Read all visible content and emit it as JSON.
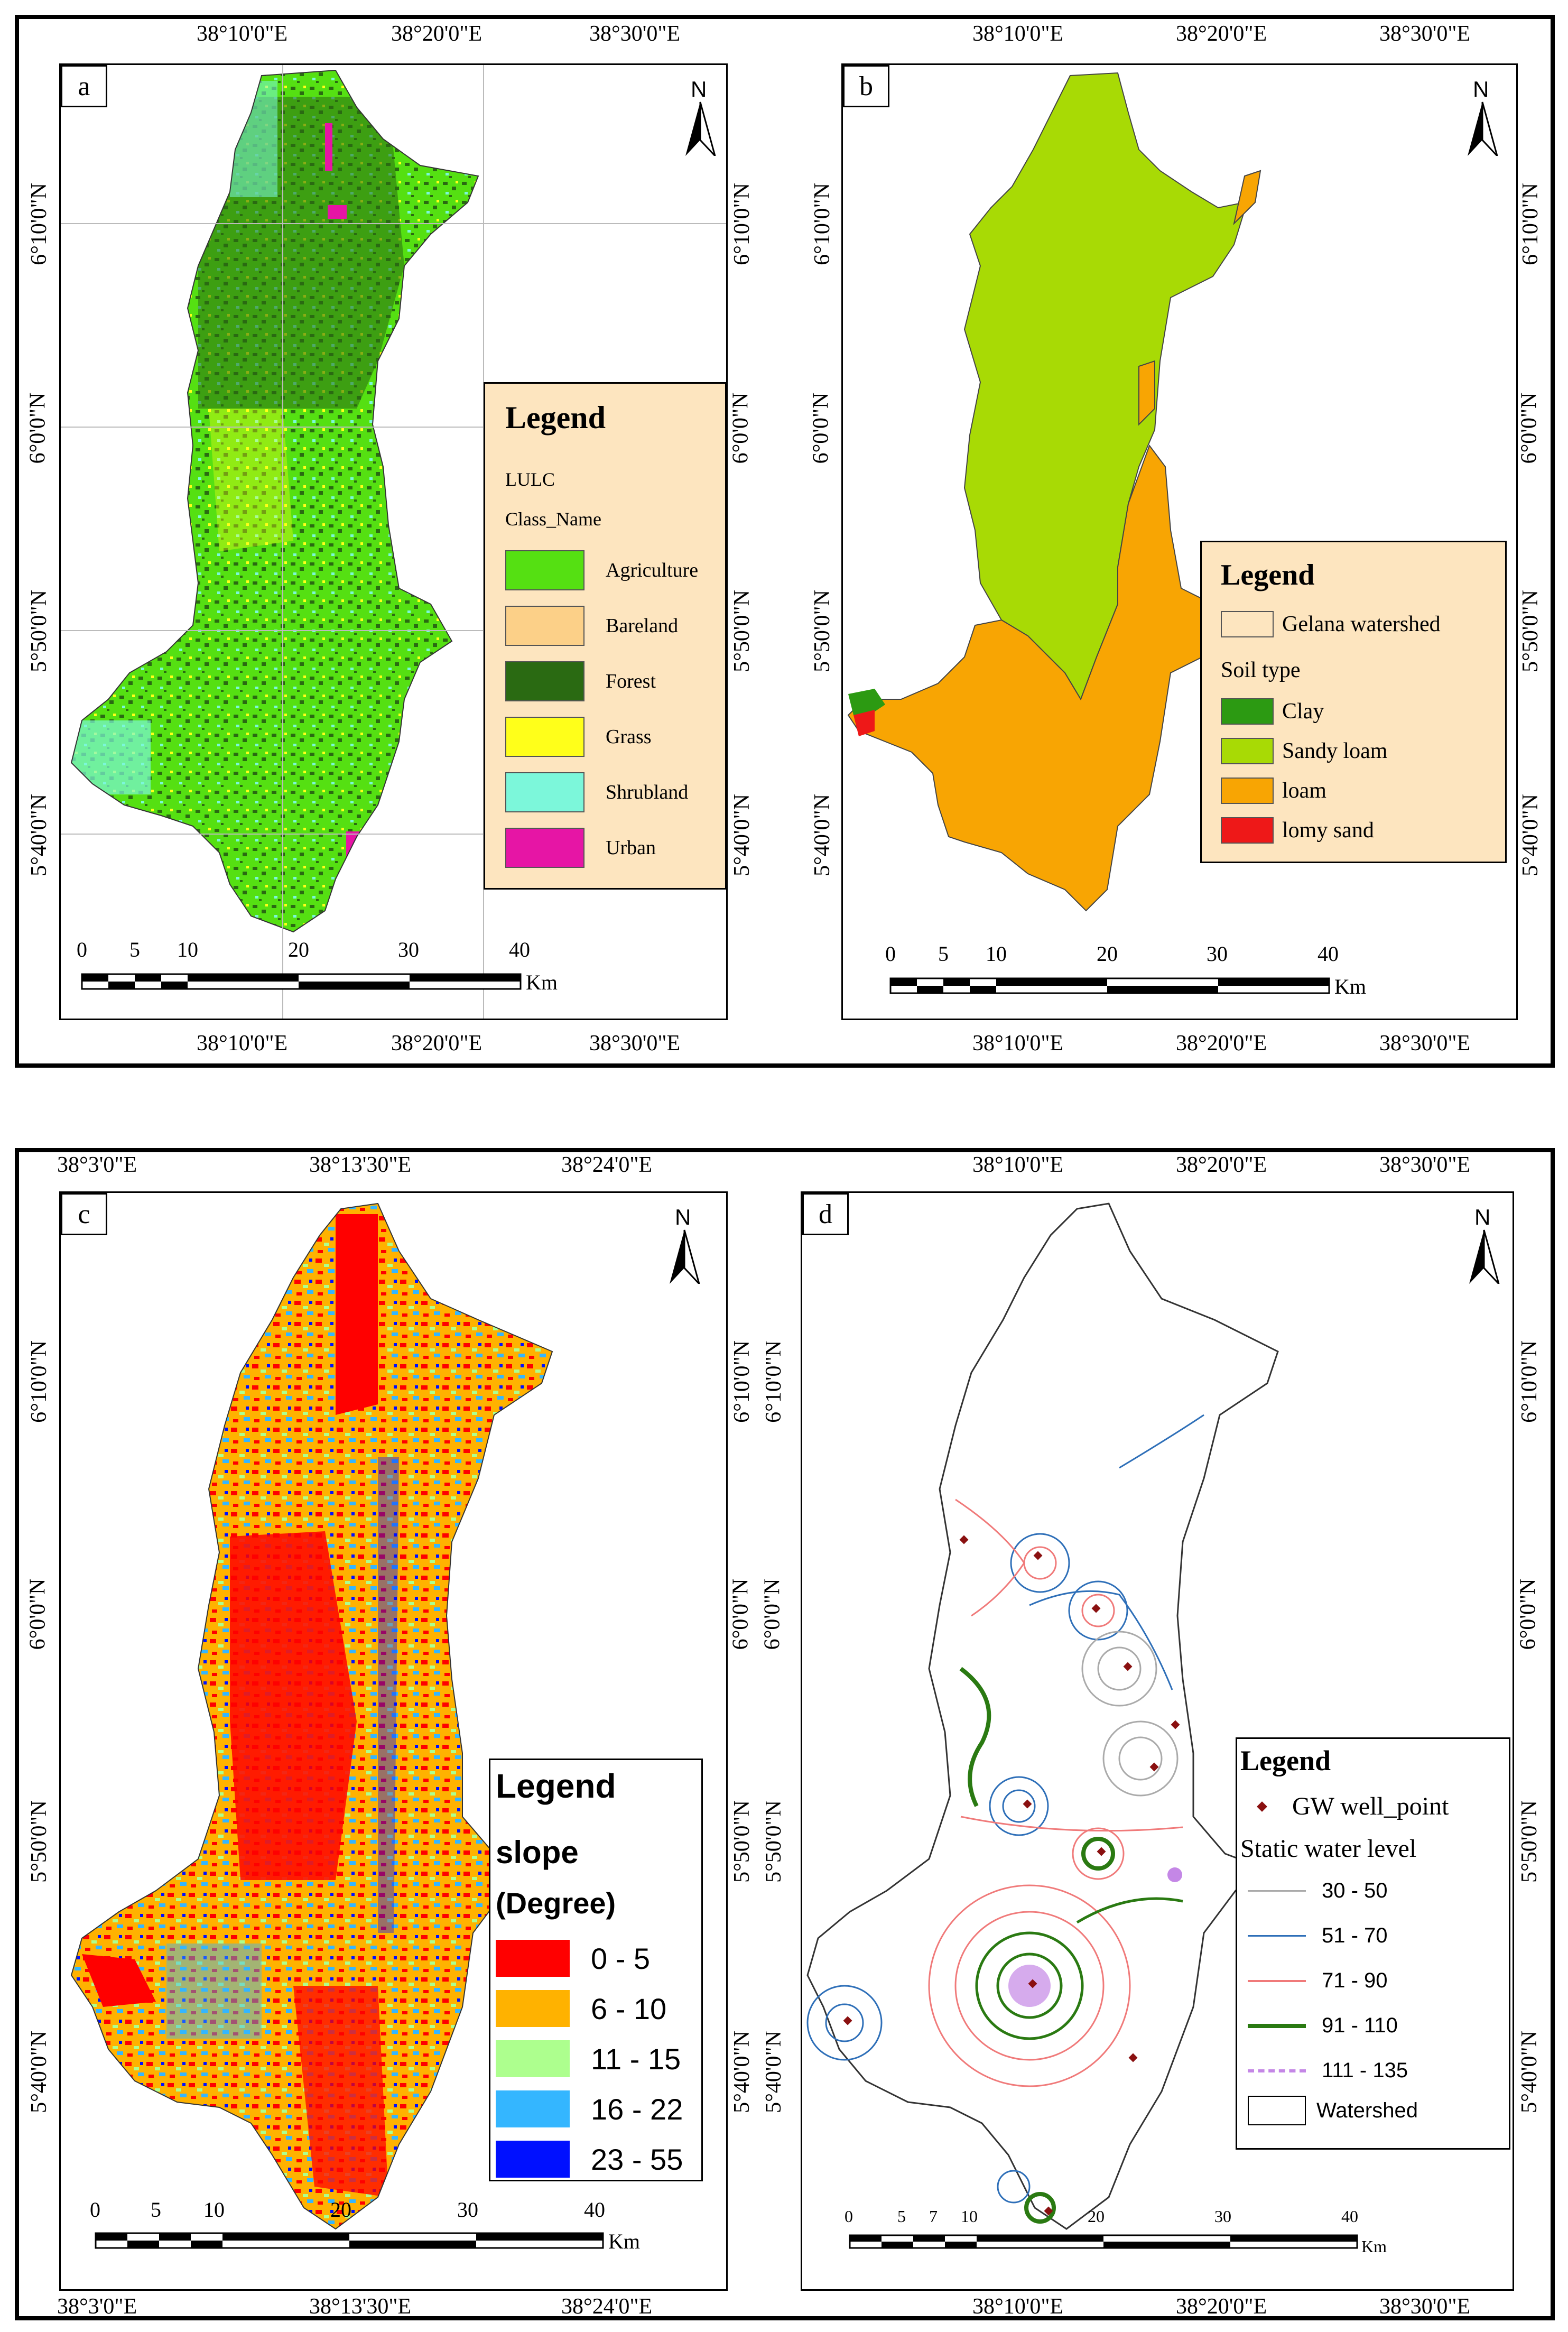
{
  "panels": {
    "a": {
      "label": "a",
      "top_lons": [
        "38°10'0\"E",
        "38°20'0\"E",
        "38°30'0\"E"
      ],
      "bottom_lons": [
        "38°10'0\"E",
        "38°20'0\"E",
        "38°30'0\"E"
      ],
      "lats": [
        "6°10'0\"N",
        "6°0'0\"N",
        "5°50'0\"N",
        "5°40'0\"N"
      ],
      "north": "N",
      "legend": {
        "title": "Legend",
        "sub1": "LULC",
        "sub2": "Class_Name",
        "items": [
          {
            "label": "Agriculture",
            "color": "#55e012"
          },
          {
            "label": "Bareland",
            "color": "#fcd088"
          },
          {
            "label": "Forest",
            "color": "#2a6a12"
          },
          {
            "label": "Grass",
            "color": "#ffff1a"
          },
          {
            "label": "Shrubland",
            "color": "#7cf7da"
          },
          {
            "label": "Urban",
            "color": "#e615a5"
          }
        ]
      },
      "scalebar": {
        "ticks": [
          "0",
          "5",
          "10",
          "20",
          "30",
          "40"
        ],
        "unit": "Km"
      }
    },
    "b": {
      "label": "b",
      "top_lons": [
        "38°10'0\"E",
        "38°20'0\"E",
        "38°30'0\"E"
      ],
      "bottom_lons": [
        "38°10'0\"E",
        "38°20'0\"E",
        "38°30'0\"E"
      ],
      "lats": [
        "6°10'0\"N",
        "6°0'0\"N",
        "5°50'0\"N",
        "5°40'0\"N"
      ],
      "north": "N",
      "legend": {
        "title": "Legend",
        "watershed": "Gelana watershed",
        "subtitle": "Soil type",
        "items": [
          {
            "label": "Clay",
            "color": "#2c9a12"
          },
          {
            "label": "Sandy loam",
            "color": "#a8da05"
          },
          {
            "label": "loam",
            "color": "#f8a503"
          },
          {
            "label": "lomy sand",
            "color": "#ee1818"
          }
        ]
      },
      "scalebar": {
        "ticks": [
          "0",
          "5",
          "10",
          "20",
          "30",
          "40"
        ],
        "unit": "Km"
      }
    },
    "c": {
      "label": "c",
      "top_lons": [
        "38°3'0\"E",
        "38°13'30\"E",
        "38°24'0\"E"
      ],
      "bottom_lons": [
        "38°3'0\"E",
        "38°13'30\"E",
        "38°24'0\"E"
      ],
      "lats": [
        "6°10'0\"N",
        "6°0'0\"N",
        "5°50'0\"N",
        "5°40'0\"N"
      ],
      "north": "N",
      "legend": {
        "title": "Legend",
        "sub1": "slope",
        "sub2": "(Degree)",
        "items": [
          {
            "label": "0 - 5",
            "color": "#ff0000"
          },
          {
            "label": "6 - 10",
            "color": "#ffb200"
          },
          {
            "label": "11 - 15",
            "color": "#adff8e"
          },
          {
            "label": "16 - 22",
            "color": "#34b6ff"
          },
          {
            "label": "23 - 55",
            "color": "#0010ff"
          }
        ]
      },
      "scalebar": {
        "ticks": [
          "0",
          "5",
          "10",
          "20",
          "30",
          "40"
        ],
        "unit": "Km"
      }
    },
    "d": {
      "label": "d",
      "top_lons": [
        "38°10'0\"E",
        "38°20'0\"E",
        "38°30'0\"E"
      ],
      "bottom_lons": [
        "38°10'0\"E",
        "38°20'0\"E",
        "38°30'0\"E"
      ],
      "lats": [
        "6°10'0\"N",
        "6°0'0\"N",
        "5°50'0\"N",
        "5°40'0\"N"
      ],
      "north": "N",
      "legend": {
        "title": "Legend",
        "well": "GW well_point",
        "subtitle": "Static water level",
        "items": [
          {
            "label": "30 - 50",
            "color": "#aaaaaa"
          },
          {
            "label": "51 - 70",
            "color": "#2e6fb8"
          },
          {
            "label": "71 - 90",
            "color": "#f07a7a"
          },
          {
            "label": "91 - 110",
            "color": "#2a7a12"
          },
          {
            "label": "111 - 135",
            "color": "#c487e6"
          }
        ],
        "watershed": "Watershed"
      },
      "scalebar": {
        "ticks": [
          "0",
          "5",
          "7",
          "10",
          "20",
          "30",
          "40"
        ],
        "unit": "Km"
      }
    }
  }
}
